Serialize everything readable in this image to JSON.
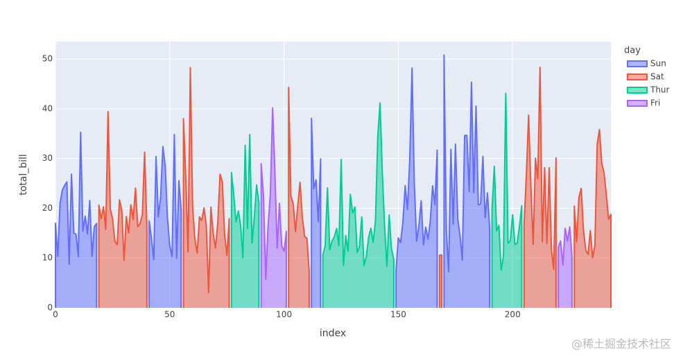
{
  "chart_data": {
    "type": "area",
    "x_label": "index",
    "y_label": "total_bill",
    "legend_title": "day",
    "xlim": [
      0,
      243
    ],
    "ylim": [
      0,
      53.5
    ],
    "xticks": [
      0,
      50,
      100,
      150,
      200
    ],
    "yticks": [
      0,
      10,
      20,
      30,
      40,
      50
    ],
    "grid": true,
    "legend_position": "right",
    "watermark": "@稀土掘金技术社区",
    "series": [
      {
        "name": "Sun",
        "color": "#636efa",
        "x": [
          0,
          1,
          2,
          3,
          4,
          5,
          6,
          7,
          8,
          9,
          10,
          11,
          12,
          13,
          14,
          15,
          16,
          17,
          18,
          41,
          42,
          43,
          44,
          45,
          46,
          47,
          48,
          49,
          50,
          51,
          52,
          53,
          54,
          55,
          112,
          113,
          114,
          115,
          116,
          149,
          150,
          151,
          152,
          153,
          154,
          155,
          156,
          157,
          158,
          159,
          160,
          161,
          162,
          163,
          164,
          165,
          166,
          167,
          170,
          171,
          172,
          173,
          174,
          175,
          176,
          177,
          178,
          179,
          180,
          181,
          182,
          183,
          184,
          185,
          186,
          187,
          188,
          189,
          190
        ],
        "values": [
          16.99,
          10.34,
          21.01,
          23.68,
          24.59,
          25.29,
          8.77,
          26.88,
          15.04,
          14.78,
          10.27,
          35.26,
          15.42,
          18.43,
          14.83,
          21.58,
          10.33,
          16.29,
          16.97,
          17.46,
          13.94,
          9.68,
          30.4,
          18.29,
          22.23,
          32.4,
          28.55,
          18.04,
          12.54,
          10.29,
          34.81,
          9.94,
          25.56,
          19.49,
          38.07,
          23.95,
          25.71,
          17.31,
          29.93,
          7.51,
          14.07,
          13.13,
          17.26,
          24.55,
          19.77,
          29.85,
          48.17,
          25.0,
          13.39,
          16.49,
          21.5,
          12.66,
          16.21,
          13.81,
          17.51,
          24.52,
          20.76,
          31.71,
          50.81,
          15.81,
          7.25,
          31.85,
          16.82,
          32.9,
          17.89,
          14.48,
          9.6,
          34.63,
          34.65,
          23.33,
          45.35,
          23.17,
          40.55,
          20.69,
          20.9,
          30.46,
          18.15,
          23.1,
          15.69
        ]
      },
      {
        "name": "Sat",
        "color": "#EF553B",
        "x": [
          19,
          20,
          21,
          22,
          23,
          24,
          25,
          26,
          27,
          28,
          29,
          30,
          31,
          32,
          33,
          34,
          35,
          36,
          37,
          38,
          39,
          40,
          56,
          57,
          58,
          59,
          60,
          61,
          62,
          63,
          64,
          65,
          66,
          67,
          68,
          69,
          70,
          71,
          72,
          73,
          74,
          75,
          76,
          102,
          103,
          104,
          105,
          106,
          107,
          108,
          109,
          110,
          111,
          168,
          169,
          205,
          206,
          207,
          208,
          209,
          210,
          211,
          212,
          213,
          214,
          215,
          216,
          217,
          218,
          219,
          227,
          228,
          229,
          230,
          231,
          232,
          233,
          234,
          235,
          236,
          237,
          238,
          239,
          240,
          241,
          242,
          243
        ],
        "values": [
          20.65,
          17.92,
          20.29,
          15.77,
          39.42,
          19.82,
          17.81,
          13.37,
          12.69,
          21.7,
          19.65,
          9.55,
          18.35,
          15.06,
          20.69,
          17.78,
          24.06,
          16.31,
          16.93,
          18.69,
          31.27,
          16.04,
          38.01,
          26.41,
          11.24,
          48.27,
          20.29,
          13.81,
          11.02,
          18.29,
          17.59,
          20.08,
          16.45,
          3.07,
          20.23,
          15.01,
          12.02,
          17.07,
          26.86,
          25.28,
          14.73,
          10.51,
          17.92,
          44.3,
          22.42,
          20.92,
          15.36,
          20.49,
          25.21,
          18.24,
          14.31,
          14.0,
          7.25,
          10.59,
          10.63,
          16.47,
          26.59,
          38.73,
          24.27,
          12.76,
          30.06,
          25.89,
          48.33,
          13.27,
          28.17,
          12.9,
          28.15,
          11.59,
          7.74,
          30.14,
          20.45,
          13.28,
          22.12,
          24.01,
          15.69,
          11.61,
          10.77,
          15.53,
          10.07,
          12.6,
          32.83,
          35.83,
          29.03,
          27.18,
          22.67,
          17.82,
          18.78
        ]
      },
      {
        "name": "Thur",
        "color": "#00cc96",
        "x": [
          77,
          78,
          79,
          80,
          81,
          82,
          83,
          84,
          85,
          86,
          87,
          88,
          89,
          117,
          118,
          119,
          120,
          121,
          122,
          123,
          124,
          125,
          126,
          127,
          128,
          129,
          130,
          131,
          132,
          133,
          134,
          135,
          136,
          137,
          138,
          139,
          140,
          141,
          142,
          143,
          144,
          145,
          146,
          147,
          148,
          191,
          192,
          193,
          194,
          195,
          196,
          197,
          198,
          199,
          200,
          201,
          202,
          203,
          204
        ],
        "values": [
          27.2,
          22.76,
          17.29,
          19.44,
          16.66,
          10.07,
          32.68,
          15.98,
          34.83,
          13.03,
          18.28,
          24.71,
          21.16,
          10.65,
          12.43,
          24.08,
          11.69,
          13.42,
          14.26,
          15.95,
          12.48,
          29.8,
          8.52,
          14.52,
          11.38,
          22.82,
          19.08,
          20.27,
          11.17,
          12.26,
          18.26,
          8.51,
          10.33,
          14.15,
          16.0,
          13.16,
          17.47,
          34.3,
          41.19,
          27.05,
          16.43,
          8.35,
          18.64,
          11.87,
          9.78,
          19.81,
          28.44,
          15.48,
          16.58,
          7.56,
          10.34,
          43.11,
          13.0,
          13.51,
          18.71,
          12.74,
          13.0,
          16.4,
          20.53
        ]
      },
      {
        "name": "Fri",
        "color": "#ab63fa",
        "x": [
          90,
          91,
          92,
          93,
          94,
          95,
          96,
          97,
          98,
          99,
          100,
          101,
          220,
          221,
          222,
          223,
          224,
          225,
          226
        ],
        "values": [
          28.97,
          22.49,
          5.75,
          16.32,
          22.75,
          40.17,
          27.28,
          12.03,
          21.01,
          12.46,
          11.35,
          15.38,
          12.16,
          13.42,
          8.58,
          15.98,
          13.42,
          16.27,
          10.09
        ]
      }
    ]
  }
}
